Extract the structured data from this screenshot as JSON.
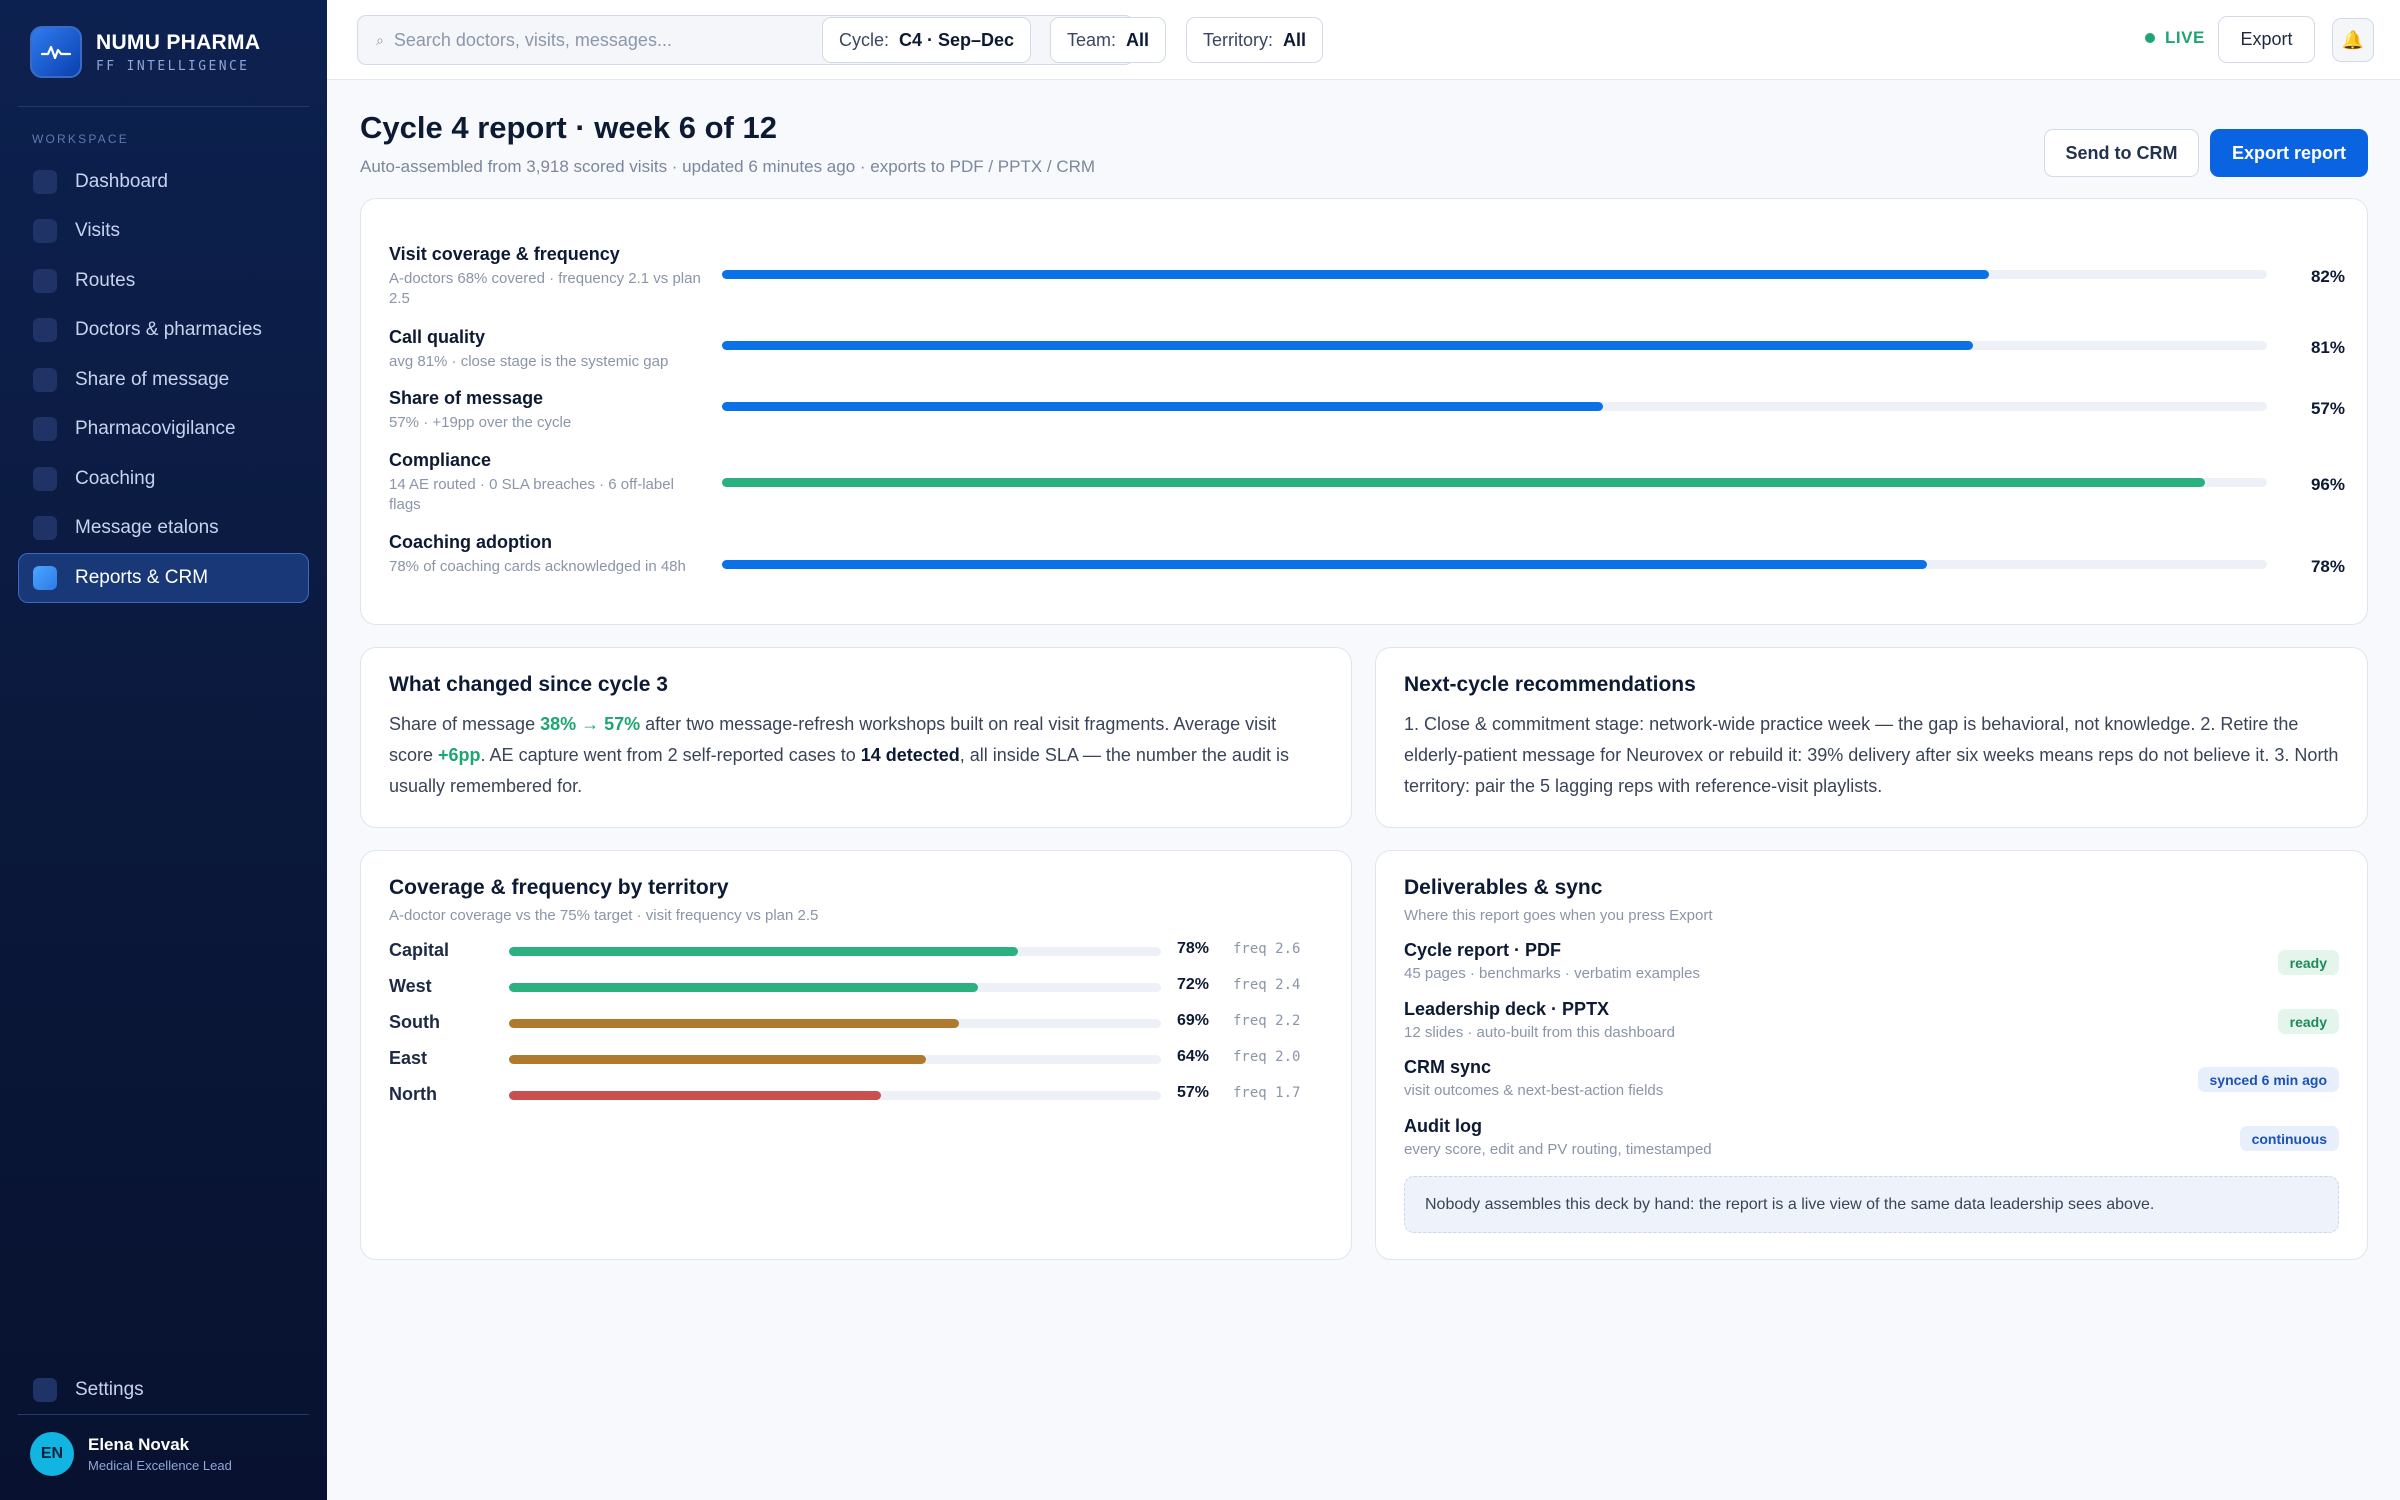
{
  "brand": {
    "name": "NUMU PHARMA",
    "subtitle": "FF INTELLIGENCE"
  },
  "sidebar": {
    "section_label": "WORKSPACE",
    "items": [
      {
        "label": "Dashboard"
      },
      {
        "label": "Visits"
      },
      {
        "label": "Routes"
      },
      {
        "label": "Doctors & pharmacies"
      },
      {
        "label": "Share of message"
      },
      {
        "label": "Pharmacovigilance"
      },
      {
        "label": "Coaching"
      },
      {
        "label": "Message etalons"
      },
      {
        "label": "Reports & CRM",
        "active": true
      }
    ],
    "settings_label": "Settings",
    "user": {
      "initials": "EN",
      "name": "Elena Novak",
      "role": "Medical Excellence Lead"
    }
  },
  "topbar": {
    "search_placeholder": "Search doctors, visits, messages...",
    "filters": [
      {
        "label": "Cycle:",
        "value": "C4 · Sep–Dec"
      },
      {
        "label": "Team:",
        "value": "All"
      },
      {
        "label": "Territory:",
        "value": "All"
      }
    ],
    "live_label": "LIVE",
    "export_label": "Export",
    "bell_icon": "🔔"
  },
  "header": {
    "title": "Cycle 4 report · week 6 of 12",
    "subtitle": "Auto-assembled from 3,918 scored visits · updated 6 minutes ago · exports to PDF / PPTX / CRM",
    "send_crm_label": "Send to CRM",
    "export_report_label": "Export report"
  },
  "kpis": [
    {
      "name": "Visit coverage & frequency",
      "sub": "A-doctors 68% covered · frequency 2.1 vs plan 2.5",
      "value": 82,
      "value_label": "82%",
      "color": "#0a72e6"
    },
    {
      "name": "Call quality",
      "sub": "avg 81% · close stage is the systemic gap",
      "value": 81,
      "value_label": "81%",
      "color": "#0a72e6"
    },
    {
      "name": "Share of message",
      "sub": "57% · +19pp over the cycle",
      "value": 57,
      "value_label": "57%",
      "color": "#0a72e6"
    },
    {
      "name": "Compliance",
      "sub": "14 AE routed · 0 SLA breaches · 6 off-label flags",
      "value": 96,
      "value_label": "96%",
      "color": "#2bb07f"
    },
    {
      "name": "Coaching adoption",
      "sub": "78% of coaching cards acknowledged in 48h",
      "value": 78,
      "value_label": "78%",
      "color": "#0a72e6"
    }
  ],
  "changes": {
    "title": "What changed since cycle 3",
    "t1": "Share of message ",
    "h1": "38% → 57%",
    "t2": " after two message-refresh workshops built on real visit fragments. Average visit score ",
    "h2": "+6pp",
    "t3": ". AE capture went from 2 self-reported cases to ",
    "h3": "14 detected",
    "t4": ", all inside SLA — the number the audit is usually remembered for."
  },
  "recommendations": {
    "title": "Next-cycle recommendations",
    "text": "1. Close & commitment stage: network-wide practice week — the gap is behavioral, not knowledge. 2. Retire the elderly-patient message for Neurovex or rebuild it: 39% delivery after six weeks means reps do not believe it. 3. North territory: pair the 5 lagging reps with reference-visit playlists."
  },
  "territory": {
    "title": "Coverage & frequency by territory",
    "subtitle": "A-doctor coverage vs the 75% target · visit frequency vs plan 2.5",
    "rows": [
      {
        "name": "Capital",
        "value": 78,
        "value_label": "78%",
        "freq": "freq 2.6",
        "color": "#2bb07f"
      },
      {
        "name": "West",
        "value": 72,
        "value_label": "72%",
        "freq": "freq 2.4",
        "color": "#2bb07f"
      },
      {
        "name": "South",
        "value": 69,
        "value_label": "69%",
        "freq": "freq 2.2",
        "color": "#b07a2e"
      },
      {
        "name": "East",
        "value": 64,
        "value_label": "64%",
        "freq": "freq 2.0",
        "color": "#b07a2e"
      },
      {
        "name": "North",
        "value": 57,
        "value_label": "57%",
        "freq": "freq 1.7",
        "color": "#c9504f"
      }
    ]
  },
  "deliverables": {
    "title": "Deliverables & sync",
    "subtitle": "Where this report goes when you press Export",
    "items": [
      {
        "name": "Cycle report · PDF",
        "sub": "45 pages · benchmarks · verbatim examples",
        "status": "ready",
        "status_type": "ready"
      },
      {
        "name": "Leadership deck · PPTX",
        "sub": "12 slides · auto-built from this dashboard",
        "status": "ready",
        "status_type": "ready"
      },
      {
        "name": "CRM sync",
        "sub": "visit outcomes & next-best-action fields",
        "status": "synced 6 min ago",
        "status_type": "blue"
      },
      {
        "name": "Audit log",
        "sub": "every score, edit and PV routing, timestamped",
        "status": "continuous",
        "status_type": "blue"
      }
    ],
    "note": "Nobody assembles this deck by hand: the report is a live view of the same data leadership sees above."
  }
}
